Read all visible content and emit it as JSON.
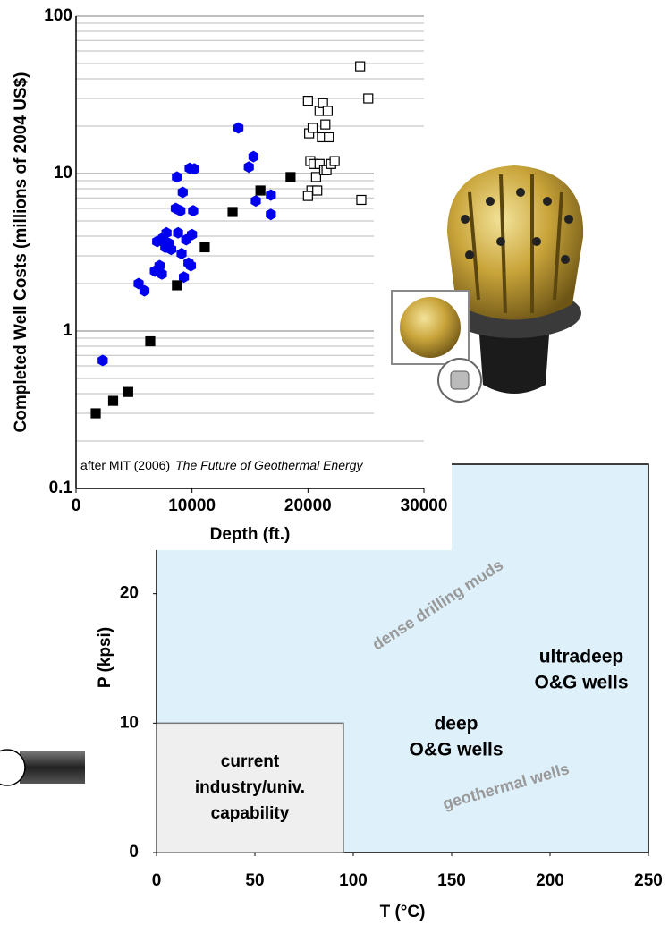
{
  "chart_data": [
    {
      "type": "scatter",
      "xlabel": "Depth (ft.)",
      "ylabel": "Completed Well Costs (millions of 2004 US$)",
      "annotation": "after MIT (2006)",
      "annotation_source": "The Future of Geothermal Energy",
      "xlim": [
        0,
        30000
      ],
      "xticks": [
        0,
        10000,
        20000,
        30000
      ],
      "ylim": [
        0.1,
        100
      ],
      "yticks": [
        0.1,
        1,
        10,
        100
      ],
      "log_y": true,
      "minor_gridlines": [
        0.2,
        0.3,
        0.4,
        0.5,
        0.6,
        0.7,
        0.8,
        0.9,
        2,
        3,
        4,
        5,
        6,
        7,
        8,
        9,
        20,
        30,
        40,
        50,
        60,
        70,
        80,
        90
      ],
      "grid": true,
      "series": [
        {
          "color": "#0000ee",
          "marker": "hexagon",
          "x": [
            2300,
            5400,
            5900,
            6800,
            7000,
            7200,
            7400,
            7500,
            7700,
            7800,
            8000,
            8200,
            8600,
            8700,
            8800,
            9000,
            9100,
            9200,
            9300,
            9500,
            9700,
            9800,
            9900,
            10000,
            10100,
            10200,
            14000,
            14900,
            15300,
            15500,
            16800,
            16800
          ],
          "values": [
            0.65,
            2.0,
            1.8,
            2.4,
            3.7,
            2.6,
            2.3,
            3.9,
            3.4,
            4.2,
            3.6,
            3.3,
            6.0,
            9.5,
            4.2,
            5.8,
            3.1,
            7.6,
            2.2,
            3.8,
            2.7,
            10.8,
            2.6,
            4.1,
            5.8,
            10.7,
            19.5,
            11.0,
            12.8,
            6.7,
            7.3,
            5.5
          ]
        },
        {
          "color": "#000000",
          "marker": "square",
          "x": [
            1700,
            3200,
            4500,
            6400,
            8700,
            11100,
            13500,
            15900,
            18500
          ],
          "values": [
            0.3,
            0.36,
            0.41,
            0.86,
            1.95,
            3.4,
            5.7,
            7.8,
            9.5
          ]
        },
        {
          "color": "#ffffff",
          "marker": "open-square",
          "x": [
            20000,
            20100,
            20400,
            20200,
            20500,
            20700,
            20300,
            20800,
            20000,
            21000,
            21200,
            21300,
            21500,
            21700,
            21800,
            21000,
            21400,
            21600,
            22000,
            22300,
            24500,
            25200,
            24600
          ],
          "values": [
            29,
            18,
            19.5,
            12,
            11.5,
            9.5,
            7.8,
            7.8,
            7.2,
            25,
            17,
            28,
            20.5,
            25,
            17,
            11.5,
            10.5,
            10.5,
            11.5,
            12,
            48,
            30,
            6.8
          ]
        }
      ]
    },
    {
      "type": "region",
      "xlabel": "T (°C)",
      "ylabel": "P (kpsi)",
      "xlim": [
        0,
        250
      ],
      "xticks": [
        0,
        50,
        100,
        150,
        200,
        250
      ],
      "ylim": [
        0,
        30
      ],
      "yticks": [
        0,
        10,
        20
      ],
      "background": "#def0fa",
      "region": {
        "xlim": [
          0,
          95
        ],
        "ylim": [
          0,
          10
        ],
        "color": "#efefef",
        "lines": [
          "current",
          "industry/univ.",
          "capability"
        ]
      },
      "annotations": [
        [
          "dense drilling muds"
        ],
        [
          "ultradeep",
          "O&G wells"
        ],
        [
          "deep",
          "O&G wells"
        ],
        [
          "geothermal wells"
        ]
      ]
    }
  ]
}
